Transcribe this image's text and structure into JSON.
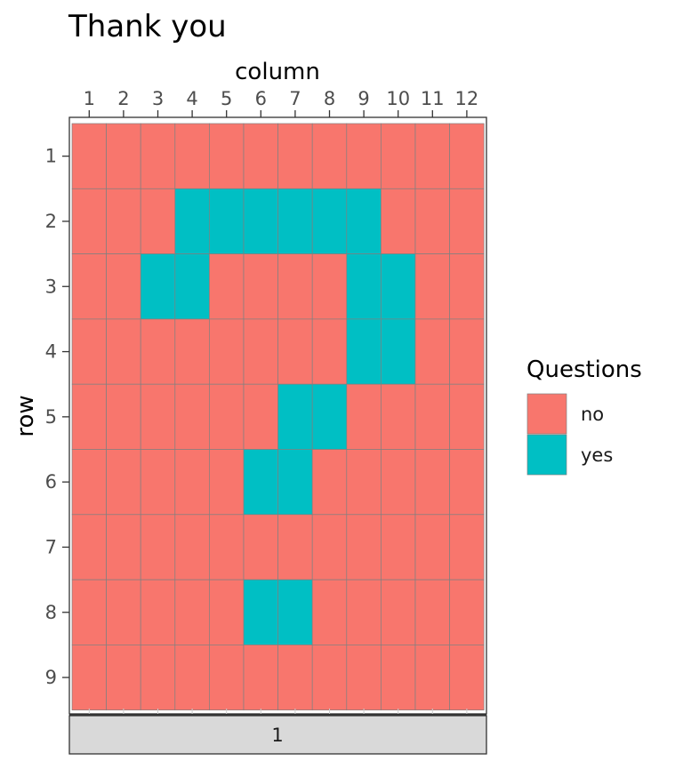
{
  "chart_data": {
    "type": "heatmap",
    "title": "Thank you",
    "xlabel": "column",
    "ylabel": "row",
    "x": [
      1,
      2,
      3,
      4,
      5,
      6,
      7,
      8,
      9,
      10,
      11,
      12
    ],
    "y": [
      1,
      2,
      3,
      4,
      5,
      6,
      7,
      8,
      9
    ],
    "x_tick_labels": [
      "1",
      "2",
      "3",
      "4",
      "5",
      "6",
      "7",
      "8",
      "9",
      "10",
      "11",
      "12"
    ],
    "y_tick_labels": [
      "1",
      "2",
      "3",
      "4",
      "5",
      "6",
      "7",
      "8",
      "9"
    ],
    "x_axis_position": "top",
    "facet_strip_label": "1",
    "legend": {
      "title": "Questions",
      "placement": "right",
      "entries": [
        {
          "label": "no",
          "color": "#F8766D"
        },
        {
          "label": "yes",
          "color": "#00BFC4"
        }
      ]
    },
    "cells": [
      [
        "no",
        "no",
        "no",
        "no",
        "no",
        "no",
        "no",
        "no",
        "no",
        "no",
        "no",
        "no"
      ],
      [
        "no",
        "no",
        "no",
        "yes",
        "yes",
        "yes",
        "yes",
        "yes",
        "yes",
        "no",
        "no",
        "no"
      ],
      [
        "no",
        "no",
        "yes",
        "yes",
        "no",
        "no",
        "no",
        "no",
        "yes",
        "yes",
        "no",
        "no"
      ],
      [
        "no",
        "no",
        "no",
        "no",
        "no",
        "no",
        "no",
        "no",
        "yes",
        "yes",
        "no",
        "no"
      ],
      [
        "no",
        "no",
        "no",
        "no",
        "no",
        "no",
        "yes",
        "yes",
        "no",
        "no",
        "no",
        "no"
      ],
      [
        "no",
        "no",
        "no",
        "no",
        "no",
        "yes",
        "yes",
        "no",
        "no",
        "no",
        "no",
        "no"
      ],
      [
        "no",
        "no",
        "no",
        "no",
        "no",
        "no",
        "no",
        "no",
        "no",
        "no",
        "no",
        "no"
      ],
      [
        "no",
        "no",
        "no",
        "no",
        "no",
        "yes",
        "yes",
        "no",
        "no",
        "no",
        "no",
        "no"
      ],
      [
        "no",
        "no",
        "no",
        "no",
        "no",
        "no",
        "no",
        "no",
        "no",
        "no",
        "no",
        "no"
      ]
    ],
    "grid": true
  }
}
